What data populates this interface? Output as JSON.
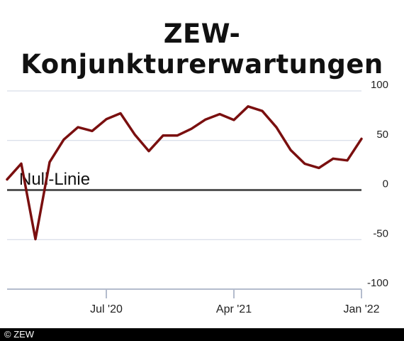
{
  "chart_data": {
    "type": "line",
    "title": "ZEW-Konjunkturerwartungen",
    "xlabel": "",
    "ylabel": "",
    "ylim": [
      -100,
      100
    ],
    "yticks": [
      100,
      50,
      0,
      -50,
      -100
    ],
    "ytick_labels": [
      "100",
      "50",
      "0",
      "-50",
      "-100"
    ],
    "xticks": [
      "2020-07",
      "2021-04",
      "2022-01"
    ],
    "xtick_labels": [
      "Jul '20",
      "Apr '21",
      "Jan '22"
    ],
    "grid": true,
    "annotation": "Null-Linie",
    "series": [
      {
        "color": "#7a0f0f",
        "x": [
          "2019-12",
          "2020-01",
          "2020-02",
          "2020-03",
          "2020-04",
          "2020-05",
          "2020-06",
          "2020-07",
          "2020-08",
          "2020-09",
          "2020-10",
          "2020-11",
          "2020-12",
          "2021-01",
          "2021-02",
          "2021-03",
          "2021-04",
          "2021-05",
          "2021-06",
          "2021-07",
          "2021-08",
          "2021-09",
          "2021-10",
          "2021-11",
          "2021-12",
          "2022-01"
        ],
        "y": [
          10.7,
          26.7,
          -49.5,
          28.2,
          51.0,
          63.4,
          59.6,
          71.5,
          77.4,
          56.1,
          39.3,
          55.0,
          55.0,
          61.8,
          71.2,
          76.6,
          70.7,
          84.4,
          79.8,
          63.3,
          40.4,
          26.5,
          22.3,
          31.7,
          29.9,
          51.7
        ]
      }
    ],
    "zero_line_color": "#555555",
    "grid_color": "#cfd6e3"
  },
  "footer": {
    "copyright": "© ZEW"
  }
}
